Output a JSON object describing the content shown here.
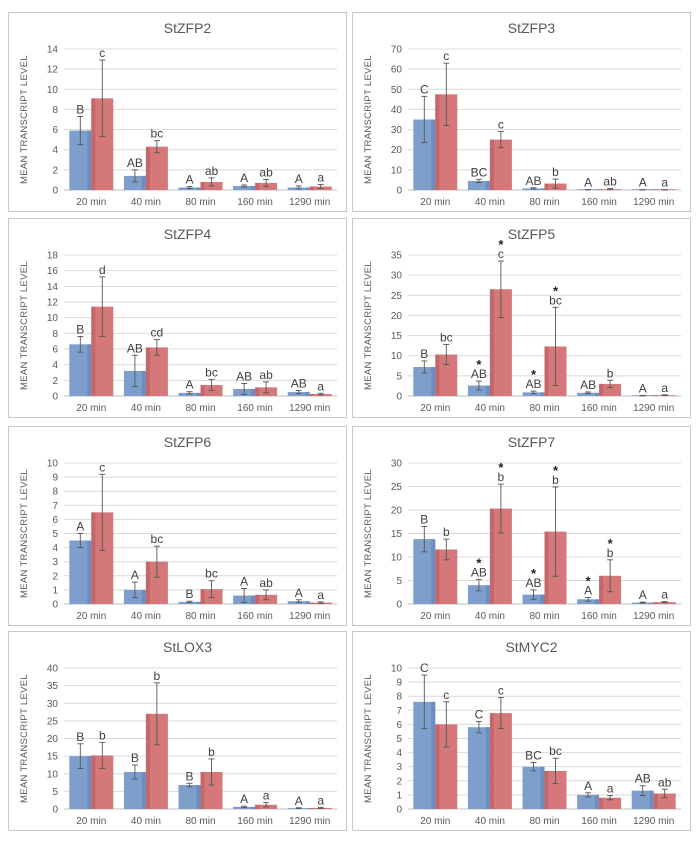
{
  "colors": {
    "series1": "#7E9FCC",
    "series1_dark": "#5B7DB5",
    "series2": "#D47879",
    "series2_dark": "#B85A5C"
  },
  "chart_data": [
    {
      "type": "bar",
      "title": "StZFP2",
      "ylabel": "MEAN TRANSCRIPT LEVEL",
      "categories": [
        "20 min",
        "40 min",
        "80 min",
        "160 min",
        "1290 min"
      ],
      "ylim": [
        0,
        14
      ],
      "ystep": 2,
      "series": [
        {
          "values": [
            5.9,
            1.4,
            0.25,
            0.4,
            0.25
          ],
          "errors": [
            1.4,
            0.6,
            0.1,
            0.1,
            0.15
          ],
          "labels": [
            "B",
            "AB",
            "A",
            "A",
            "A"
          ],
          "stars": [
            false,
            false,
            false,
            false,
            false
          ]
        },
        {
          "values": [
            9.1,
            4.3,
            0.8,
            0.7,
            0.35
          ],
          "errors": [
            3.8,
            0.6,
            0.4,
            0.35,
            0.2
          ],
          "labels": [
            "c",
            "bc",
            "ab",
            "ab",
            "a"
          ],
          "stars": [
            false,
            false,
            false,
            false,
            false
          ]
        }
      ]
    },
    {
      "type": "bar",
      "title": "StZFP3",
      "ylabel": "MEAN TRANSCRIPT LEVEL",
      "categories": [
        "20 min",
        "40 min",
        "80 min",
        "160 min",
        "1290 min"
      ],
      "ylim": [
        0,
        70
      ],
      "ystep": 10,
      "series": [
        {
          "values": [
            35,
            4.5,
            0.8,
            0.15,
            0.1
          ],
          "errors": [
            11.5,
            0.8,
            0.3,
            0.05,
            0.05
          ],
          "labels": [
            "C",
            "BC",
            "AB",
            "A",
            "A"
          ],
          "stars": [
            false,
            false,
            false,
            false,
            false
          ]
        },
        {
          "values": [
            47.5,
            25,
            3.2,
            0.4,
            0.1
          ],
          "errors": [
            15.5,
            4,
            2.2,
            0.3,
            0.05
          ],
          "labels": [
            "c",
            "c",
            "b",
            "ab",
            "a"
          ],
          "stars": [
            false,
            false,
            false,
            false,
            false
          ]
        }
      ]
    },
    {
      "type": "bar",
      "title": "StZFP4",
      "ylabel": "MEAN TRANSCRIPT LEVEL",
      "categories": [
        "20 min",
        "40 min",
        "80 min",
        "160 min",
        "1290 min"
      ],
      "ylim": [
        0,
        18
      ],
      "ystep": 2,
      "series": [
        {
          "values": [
            6.6,
            3.2,
            0.4,
            0.9,
            0.5
          ],
          "errors": [
            1.0,
            2.0,
            0.15,
            0.7,
            0.2
          ],
          "labels": [
            "B",
            "AB",
            "A",
            "AB",
            "AB"
          ],
          "stars": [
            false,
            false,
            false,
            false,
            false
          ]
        },
        {
          "values": [
            11.4,
            6.2,
            1.4,
            1.1,
            0.25
          ],
          "errors": [
            3.8,
            1.0,
            0.7,
            0.7,
            0.1
          ],
          "labels": [
            "d",
            "cd",
            "bc",
            "ab",
            "a"
          ],
          "stars": [
            false,
            false,
            false,
            false,
            false
          ]
        }
      ]
    },
    {
      "type": "bar",
      "title": "StZFP5",
      "ylabel": "MEAN TRANSCRIPT LEVEL",
      "categories": [
        "20 min",
        "40 min",
        "80 min",
        "160 min",
        "1290 min"
      ],
      "ylim": [
        0,
        35
      ],
      "ystep": 5,
      "series": [
        {
          "values": [
            7.2,
            2.6,
            0.9,
            0.8,
            0.1
          ],
          "errors": [
            1.5,
            1.1,
            0.3,
            0.2,
            0.05
          ],
          "labels": [
            "B",
            "AB",
            "AB",
            "AB",
            "A"
          ],
          "stars": [
            false,
            true,
            true,
            false,
            false
          ]
        },
        {
          "values": [
            10.3,
            26.5,
            12.3,
            3.0,
            0.2
          ],
          "errors": [
            2.5,
            7.0,
            9.7,
            0.9,
            0.1
          ],
          "labels": [
            "bc",
            "c",
            "bc",
            "b",
            "a"
          ],
          "stars": [
            false,
            true,
            true,
            false,
            false
          ]
        }
      ]
    },
    {
      "type": "bar",
      "title": "StZFP6",
      "ylabel": "MEAN TRANSCRIPT LEVEL",
      "categories": [
        "20 min",
        "40 min",
        "80 min",
        "160 min",
        "1290 min"
      ],
      "ylim": [
        0,
        10
      ],
      "ystep": 1,
      "series": [
        {
          "values": [
            4.5,
            1.0,
            0.15,
            0.6,
            0.2
          ],
          "errors": [
            0.5,
            0.55,
            0.05,
            0.5,
            0.1
          ],
          "labels": [
            "A",
            "A",
            "B",
            "A",
            "A"
          ],
          "stars": [
            false,
            false,
            false,
            false,
            false
          ]
        },
        {
          "values": [
            6.5,
            3.0,
            1.05,
            0.65,
            0.1
          ],
          "errors": [
            2.7,
            1.1,
            0.6,
            0.35,
            0.05
          ],
          "labels": [
            "c",
            "bc",
            "bc",
            "ab",
            "a"
          ],
          "stars": [
            false,
            false,
            false,
            false,
            false
          ]
        }
      ]
    },
    {
      "type": "bar",
      "title": "StZFP7",
      "ylabel": "MEAN TRANSCRIPT LEVEL",
      "categories": [
        "20 min",
        "40 min",
        "80 min",
        "160 min",
        "1290 min"
      ],
      "ylim": [
        0,
        30
      ],
      "ystep": 5,
      "series": [
        {
          "values": [
            13.8,
            4.0,
            2.0,
            1.0,
            0.3
          ],
          "errors": [
            2.7,
            1.2,
            1.0,
            0.4,
            0.1
          ],
          "labels": [
            "B",
            "AB",
            "AB",
            "A",
            "A"
          ],
          "stars": [
            false,
            true,
            true,
            true,
            false
          ]
        },
        {
          "values": [
            11.6,
            20.3,
            15.4,
            6.0,
            0.4
          ],
          "errors": [
            2.2,
            5.2,
            9.5,
            3.4,
            0.1
          ],
          "labels": [
            "b",
            "b",
            "b",
            "b",
            "a"
          ],
          "stars": [
            false,
            true,
            true,
            true,
            false
          ]
        }
      ]
    },
    {
      "type": "bar",
      "title": "StLOX3",
      "ylabel": "MEAN TRANSCRIPT LEVEL",
      "categories": [
        "20 min",
        "40 min",
        "80 min",
        "160 min",
        "1290 min"
      ],
      "ylim": [
        0,
        40
      ],
      "ystep": 5,
      "series": [
        {
          "values": [
            15.0,
            10.5,
            6.8,
            0.6,
            0.25
          ],
          "errors": [
            3.5,
            2.0,
            0.5,
            0.2,
            0.1
          ],
          "labels": [
            "B",
            "B",
            "B",
            "A",
            "A"
          ],
          "stars": [
            false,
            false,
            false,
            false,
            false
          ]
        },
        {
          "values": [
            15.2,
            27.0,
            10.5,
            1.2,
            0.3
          ],
          "errors": [
            3.7,
            8.8,
            3.7,
            0.6,
            0.15
          ],
          "labels": [
            "b",
            "b",
            "b",
            "a",
            "a"
          ],
          "stars": [
            false,
            false,
            false,
            false,
            false
          ]
        }
      ]
    },
    {
      "type": "bar",
      "title": "StMYC2",
      "ylabel": "MEAN TRANSCRIPT LEVEL",
      "categories": [
        "20 min",
        "40 min",
        "80 min",
        "160 min",
        "1290 min"
      ],
      "ylim": [
        0,
        10
      ],
      "ystep": 1,
      "series": [
        {
          "values": [
            7.6,
            5.8,
            3.0,
            1.0,
            1.3
          ],
          "errors": [
            1.9,
            0.4,
            0.3,
            0.15,
            0.35
          ],
          "labels": [
            "C",
            "C",
            "BC",
            "A",
            "AB"
          ],
          "stars": [
            false,
            false,
            false,
            false,
            false
          ]
        },
        {
          "values": [
            6.0,
            6.8,
            2.7,
            0.8,
            1.1
          ],
          "errors": [
            1.6,
            1.1,
            0.9,
            0.15,
            0.3
          ],
          "labels": [
            "c",
            "c",
            "bc",
            "a",
            "ab"
          ],
          "stars": [
            false,
            false,
            false,
            false,
            false
          ]
        }
      ]
    }
  ]
}
